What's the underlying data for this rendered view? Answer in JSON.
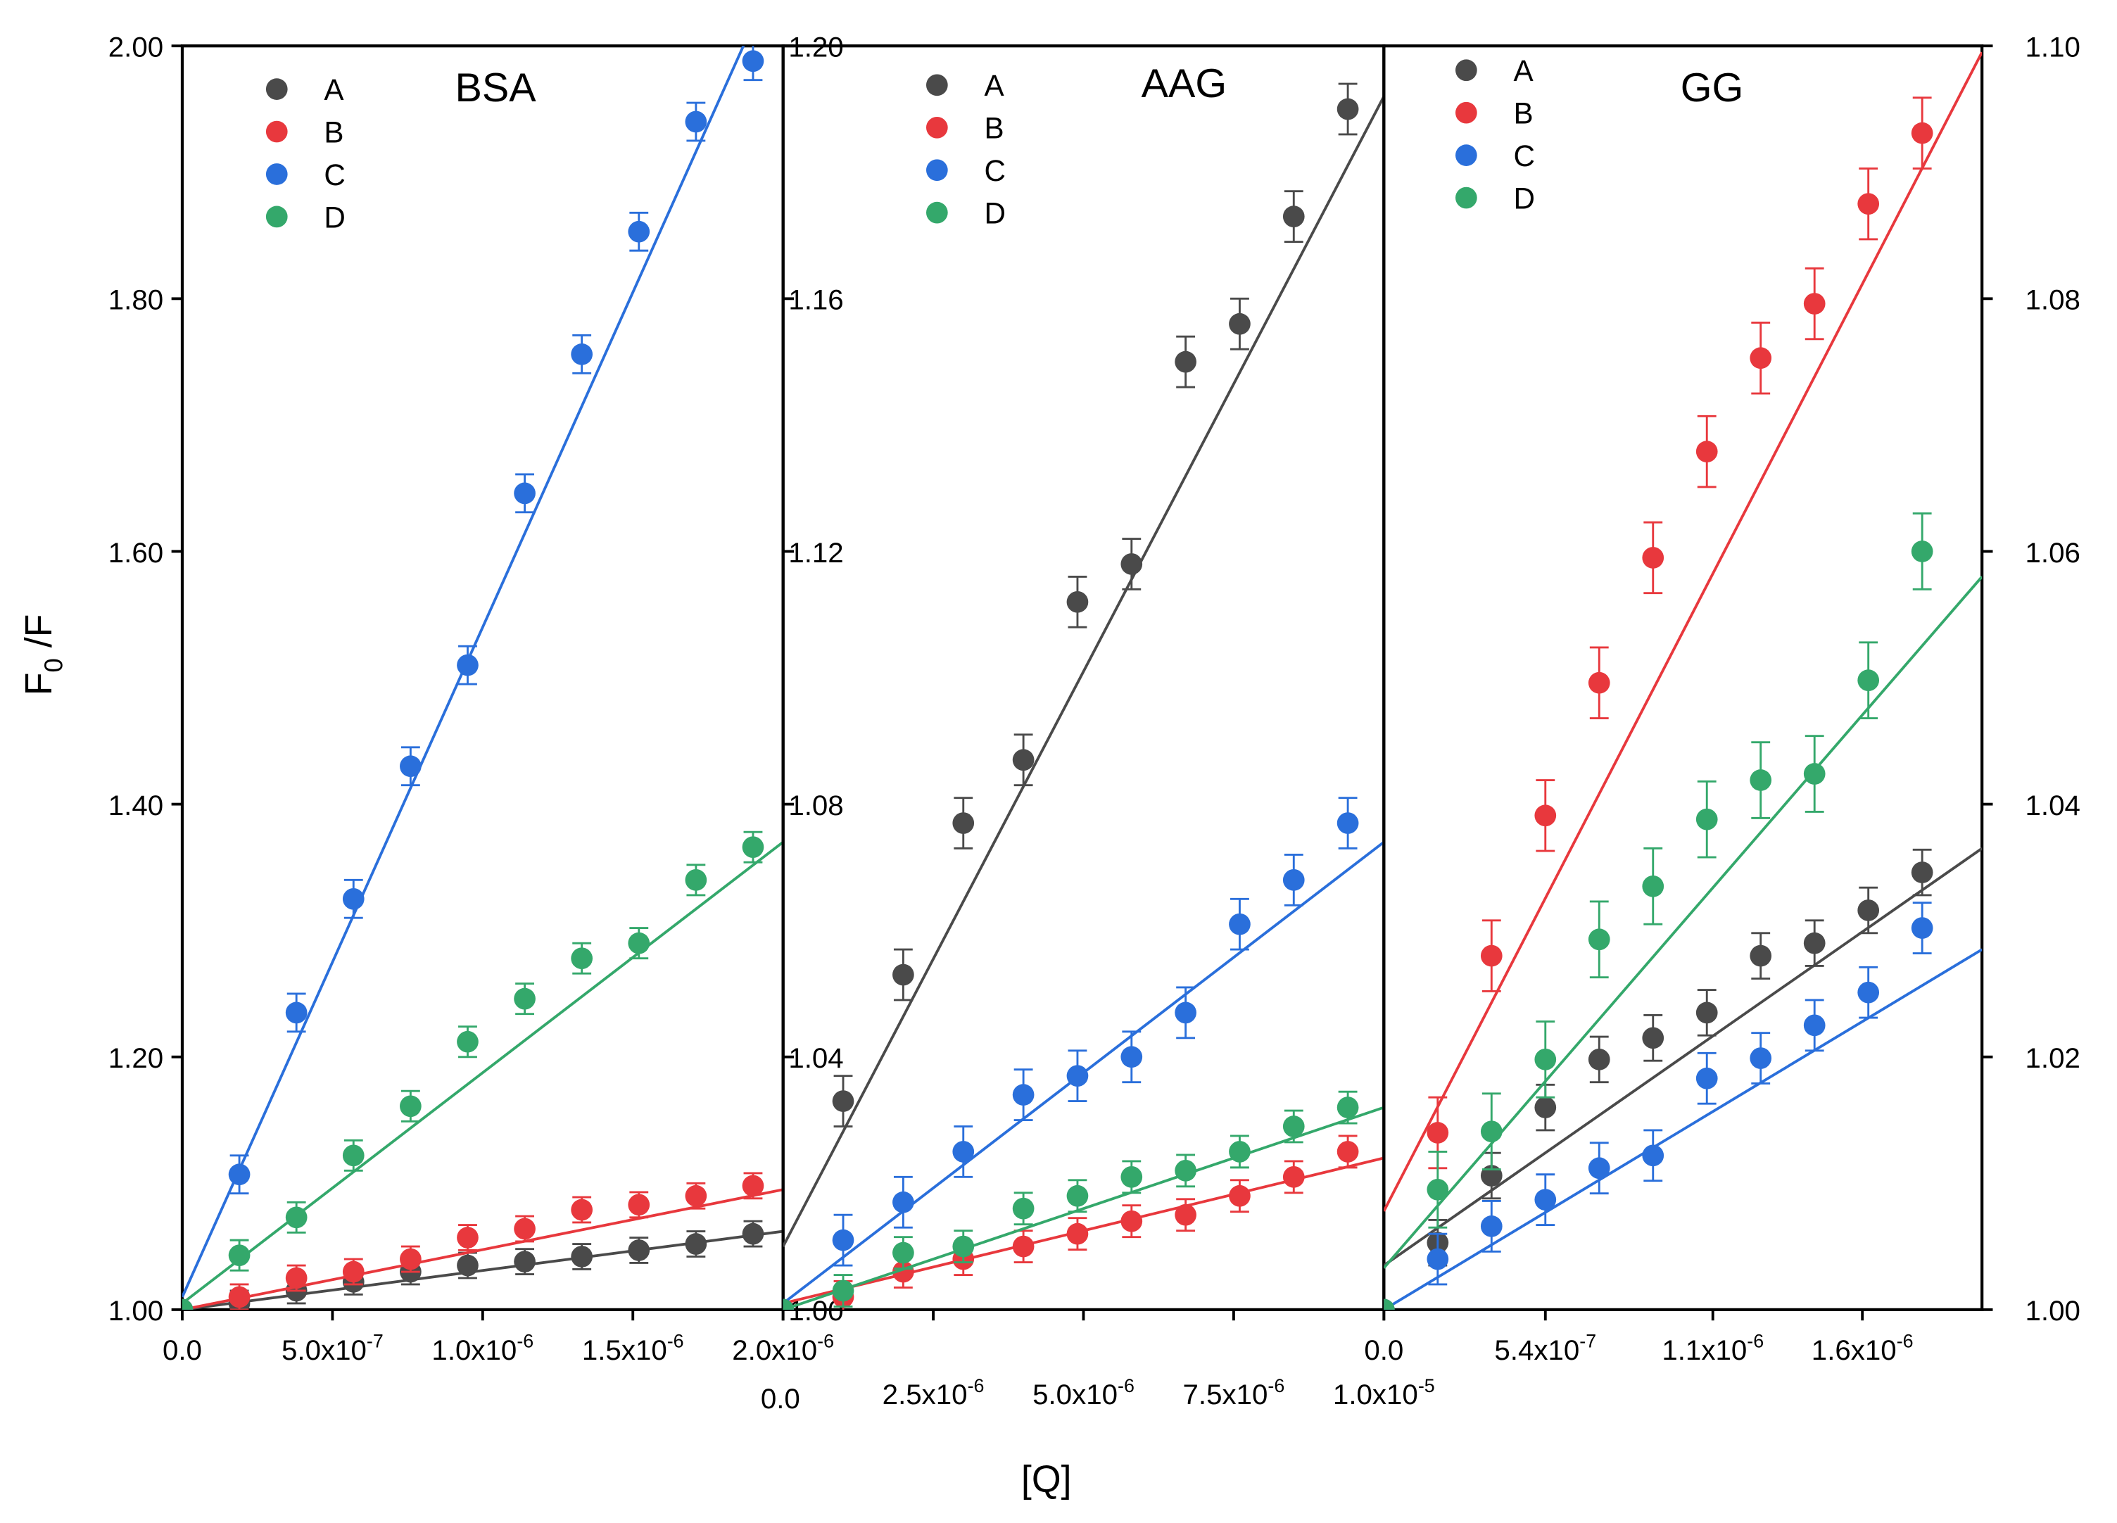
{
  "figure": {
    "ylabel_main": "F",
    "ylabel_sub": "0",
    "ylabel_tail": " /F",
    "xlabel": "[Q]"
  },
  "legend_labels": [
    "A",
    "B",
    "C",
    "D"
  ],
  "series_colors": {
    "A": "#4a4a4a",
    "B": "#e8383d",
    "C": "#2a6fdb",
    "D": "#34a86b"
  },
  "chart_data": [
    {
      "type": "scatter",
      "title": "BSA",
      "xlim": [
        0,
        2e-06
      ],
      "ylim": [
        1.0,
        2.0
      ],
      "xticks": [
        0,
        5e-07,
        1e-06,
        1.5e-06,
        2e-06
      ],
      "xtick_labels": [
        {
          "m": "0.0",
          "e": ""
        },
        {
          "m": "5.0x10",
          "e": "-7"
        },
        {
          "m": "1.0x10",
          "e": "-6"
        },
        {
          "m": "1.5x10",
          "e": "-6"
        },
        {
          "m": "2.0x10",
          "e": "-6"
        }
      ],
      "yticks": [
        1.0,
        1.2,
        1.4,
        1.6,
        1.8,
        2.0
      ],
      "ytick_labels": [
        "1.00",
        "1.20",
        "1.40",
        "1.60",
        "1.80",
        "2.00"
      ],
      "x": [
        0,
        1.9e-07,
        3.8e-07,
        5.7e-07,
        7.6e-07,
        9.5e-07,
        1.14e-06,
        1.33e-06,
        1.52e-06,
        1.71e-06,
        1.9e-06
      ],
      "series": [
        {
          "name": "A",
          "values": [
            1.0,
            1.005,
            1.015,
            1.022,
            1.03,
            1.035,
            1.038,
            1.042,
            1.047,
            1.052,
            1.06
          ],
          "err": 0.01,
          "fit": [
            1.0,
            1.062
          ]
        },
        {
          "name": "B",
          "values": [
            1.0,
            1.01,
            1.025,
            1.03,
            1.04,
            1.057,
            1.064,
            1.079,
            1.083,
            1.09,
            1.098
          ],
          "err": 0.01,
          "fit": [
            1.0,
            1.095
          ]
        },
        {
          "name": "C",
          "values": [
            1.0,
            1.107,
            1.235,
            1.325,
            1.43,
            1.51,
            1.646,
            1.756,
            1.853,
            1.94,
            1.988
          ],
          "err": 0.015,
          "fit": [
            1.01,
            2.07
          ]
        },
        {
          "name": "D",
          "values": [
            1.0,
            1.043,
            1.073,
            1.122,
            1.161,
            1.212,
            1.246,
            1.278,
            1.29,
            1.34,
            1.366
          ],
          "err": 0.012,
          "fit": [
            1.005,
            1.37
          ]
        }
      ]
    },
    {
      "type": "scatter",
      "title": "AAG",
      "xlim": [
        0,
        1e-05
      ],
      "ylim": [
        1.0,
        1.2
      ],
      "xticks": [
        0,
        2.5e-06,
        5e-06,
        7.5e-06,
        1e-05
      ],
      "xtick_labels": [
        {
          "m": "0.0",
          "e": ""
        },
        {
          "m": "2.5x10",
          "e": "-6"
        },
        {
          "m": "5.0x10",
          "e": "-6"
        },
        {
          "m": "7.5x10",
          "e": "-6"
        },
        {
          "m": "1.0x10",
          "e": "-5"
        }
      ],
      "yticks": [
        1.0,
        1.04,
        1.08,
        1.12,
        1.16,
        1.2
      ],
      "ytick_labels": [
        "1.00",
        "1.04",
        "1.08",
        "1.12",
        "1.16",
        "1.20"
      ],
      "x": [
        0,
        1e-06,
        2e-06,
        3e-06,
        4e-06,
        4.9e-06,
        5.8e-06,
        6.7e-06,
        7.6e-06,
        8.5e-06,
        9.4e-06
      ],
      "series": [
        {
          "name": "A",
          "values": [
            1.0,
            1.033,
            1.053,
            1.077,
            1.087,
            1.112,
            1.118,
            1.15,
            1.156,
            1.173,
            1.19
          ],
          "err": 0.004,
          "fit": [
            1.01,
            1.192
          ]
        },
        {
          "name": "B",
          "values": [
            1.0,
            1.002,
            1.006,
            1.008,
            1.01,
            1.012,
            1.014,
            1.015,
            1.018,
            1.021,
            1.025
          ],
          "err": 0.0025,
          "fit": [
            1.001,
            1.024
          ]
        },
        {
          "name": "C",
          "values": [
            1.0,
            1.011,
            1.017,
            1.025,
            1.034,
            1.037,
            1.04,
            1.047,
            1.061,
            1.068,
            1.077
          ],
          "err": 0.004,
          "fit": [
            1.001,
            1.074
          ]
        },
        {
          "name": "D",
          "values": [
            1.0,
            1.003,
            1.009,
            1.01,
            1.016,
            1.018,
            1.021,
            1.022,
            1.025,
            1.029,
            1.032
          ],
          "err": 0.0025,
          "fit": [
            1.0,
            1.032
          ]
        }
      ]
    },
    {
      "type": "scatter",
      "title": "GG",
      "xlim": [
        0,
        2e-06
      ],
      "ylim": [
        1.0,
        1.1
      ],
      "xticks": [
        0,
        5.4e-07,
        1.1e-06,
        1.6e-06
      ],
      "xtick_labels": [
        {
          "m": "0.0",
          "e": ""
        },
        {
          "m": "5.4x10",
          "e": "-7"
        },
        {
          "m": "1.1x10",
          "e": "-6"
        },
        {
          "m": "1.6x10",
          "e": "-6"
        }
      ],
      "yticks": [
        1.0,
        1.02,
        1.04,
        1.06,
        1.08,
        1.1
      ],
      "ytick_labels": [
        "1.00",
        "1.02",
        "1.04",
        "1.06",
        "1.08",
        "1.10"
      ],
      "x": [
        0,
        1.8e-07,
        3.6e-07,
        5.4e-07,
        7.2e-07,
        9e-07,
        1.08e-06,
        1.26e-06,
        1.44e-06,
        1.62e-06,
        1.8e-06
      ],
      "series": [
        {
          "name": "A",
          "values": [
            1.0,
            1.0053,
            1.0106,
            1.016,
            1.0198,
            1.0215,
            1.0235,
            1.028,
            1.029,
            1.0316,
            1.0346
          ],
          "err": 0.0018,
          "fit": [
            1.0035,
            1.0365
          ]
        },
        {
          "name": "B",
          "values": [
            1.0,
            1.014,
            1.028,
            1.0391,
            1.0496,
            1.0595,
            1.0679,
            1.0753,
            1.0796,
            1.0875,
            1.0931
          ],
          "err": 0.0028,
          "fit": [
            1.0078,
            1.0995
          ]
        },
        {
          "name": "C",
          "values": [
            1.0,
            1.004,
            1.0066,
            1.0087,
            1.0112,
            1.0122,
            1.0183,
            1.0199,
            1.0225,
            1.0251,
            1.0302
          ],
          "err": 0.002,
          "fit": [
            1.0,
            1.0285
          ]
        },
        {
          "name": "D",
          "values": [
            1.0,
            1.0095,
            1.0141,
            1.0198,
            1.0293,
            1.0335,
            1.0388,
            1.0419,
            1.0424,
            1.0498,
            1.06
          ],
          "err": 0.003,
          "fit": [
            1.0033,
            1.058
          ]
        }
      ]
    }
  ]
}
